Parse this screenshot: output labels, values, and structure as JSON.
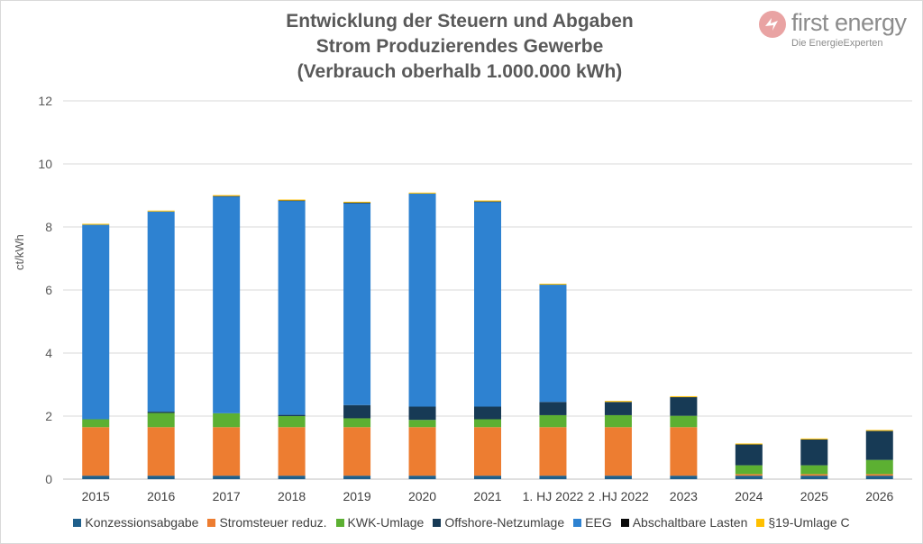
{
  "title_lines": [
    "Entwicklung der Steuern und Abgaben",
    "Strom Produzierendes Gewerbe",
    "(Verbrauch oberhalb 1.000.000 kWh)"
  ],
  "logo": {
    "name": "first energy",
    "tagline": "Die EnergieExperten"
  },
  "chart_data": {
    "type": "bar",
    "stacked": true,
    "title": "Entwicklung der Steuern und Abgaben Strom Produzierendes Gewerbe (Verbrauch oberhalb 1.000.000 kWh)",
    "xlabel": "",
    "ylabel": "ct/kWh",
    "ylim": [
      0,
      12
    ],
    "yticks": [
      0,
      2,
      4,
      6,
      8,
      10,
      12
    ],
    "grid": true,
    "legend_position": "bottom",
    "categories": [
      "2015",
      "2016",
      "2017",
      "2018",
      "2019",
      "2020",
      "2021",
      "1. HJ 2022",
      "2 .HJ 2022",
      "2023",
      "2024",
      "2025",
      "2026"
    ],
    "series": [
      {
        "name": "Konzessionsabgabe",
        "color": "#1f5f8b",
        "values": [
          0.11,
          0.11,
          0.11,
          0.11,
          0.11,
          0.11,
          0.11,
          0.11,
          0.11,
          0.11,
          0.11,
          0.11,
          0.11
        ]
      },
      {
        "name": "Stromsteuer reduz.",
        "color": "#ed7d31",
        "values": [
          1.54,
          1.54,
          1.54,
          1.54,
          1.54,
          1.54,
          1.54,
          1.54,
          1.54,
          1.54,
          0.05,
          0.05,
          0.05
        ]
      },
      {
        "name": "KWK-Umlage",
        "color": "#5cb032",
        "values": [
          0.25,
          0.45,
          0.44,
          0.35,
          0.28,
          0.23,
          0.25,
          0.38,
          0.38,
          0.36,
          0.28,
          0.28,
          0.45
        ]
      },
      {
        "name": "Offshore-Netzumlage",
        "color": "#173a55",
        "values": [
          0.0,
          0.04,
          0.0,
          0.04,
          0.42,
          0.42,
          0.4,
          0.42,
          0.42,
          0.59,
          0.66,
          0.82,
          0.92
        ]
      },
      {
        "name": "EEG",
        "color": "#2e82d1",
        "values": [
          6.17,
          6.35,
          6.88,
          6.79,
          6.41,
          6.76,
          6.5,
          3.72,
          0.0,
          0.0,
          0.0,
          0.0,
          0.0
        ]
      },
      {
        "name": "Abschaltbare Lasten",
        "color": "#0a0a0a",
        "values": [
          0.0,
          0.0,
          0.01,
          0.01,
          0.01,
          0.0,
          0.01,
          0.0,
          0.0,
          0.0,
          0.0,
          0.0,
          0.0
        ]
      },
      {
        "name": "§19-Umlage C",
        "color": "#ffc000",
        "values": [
          0.03,
          0.03,
          0.03,
          0.03,
          0.03,
          0.03,
          0.03,
          0.03,
          0.03,
          0.03,
          0.03,
          0.03,
          0.03
        ]
      }
    ]
  }
}
